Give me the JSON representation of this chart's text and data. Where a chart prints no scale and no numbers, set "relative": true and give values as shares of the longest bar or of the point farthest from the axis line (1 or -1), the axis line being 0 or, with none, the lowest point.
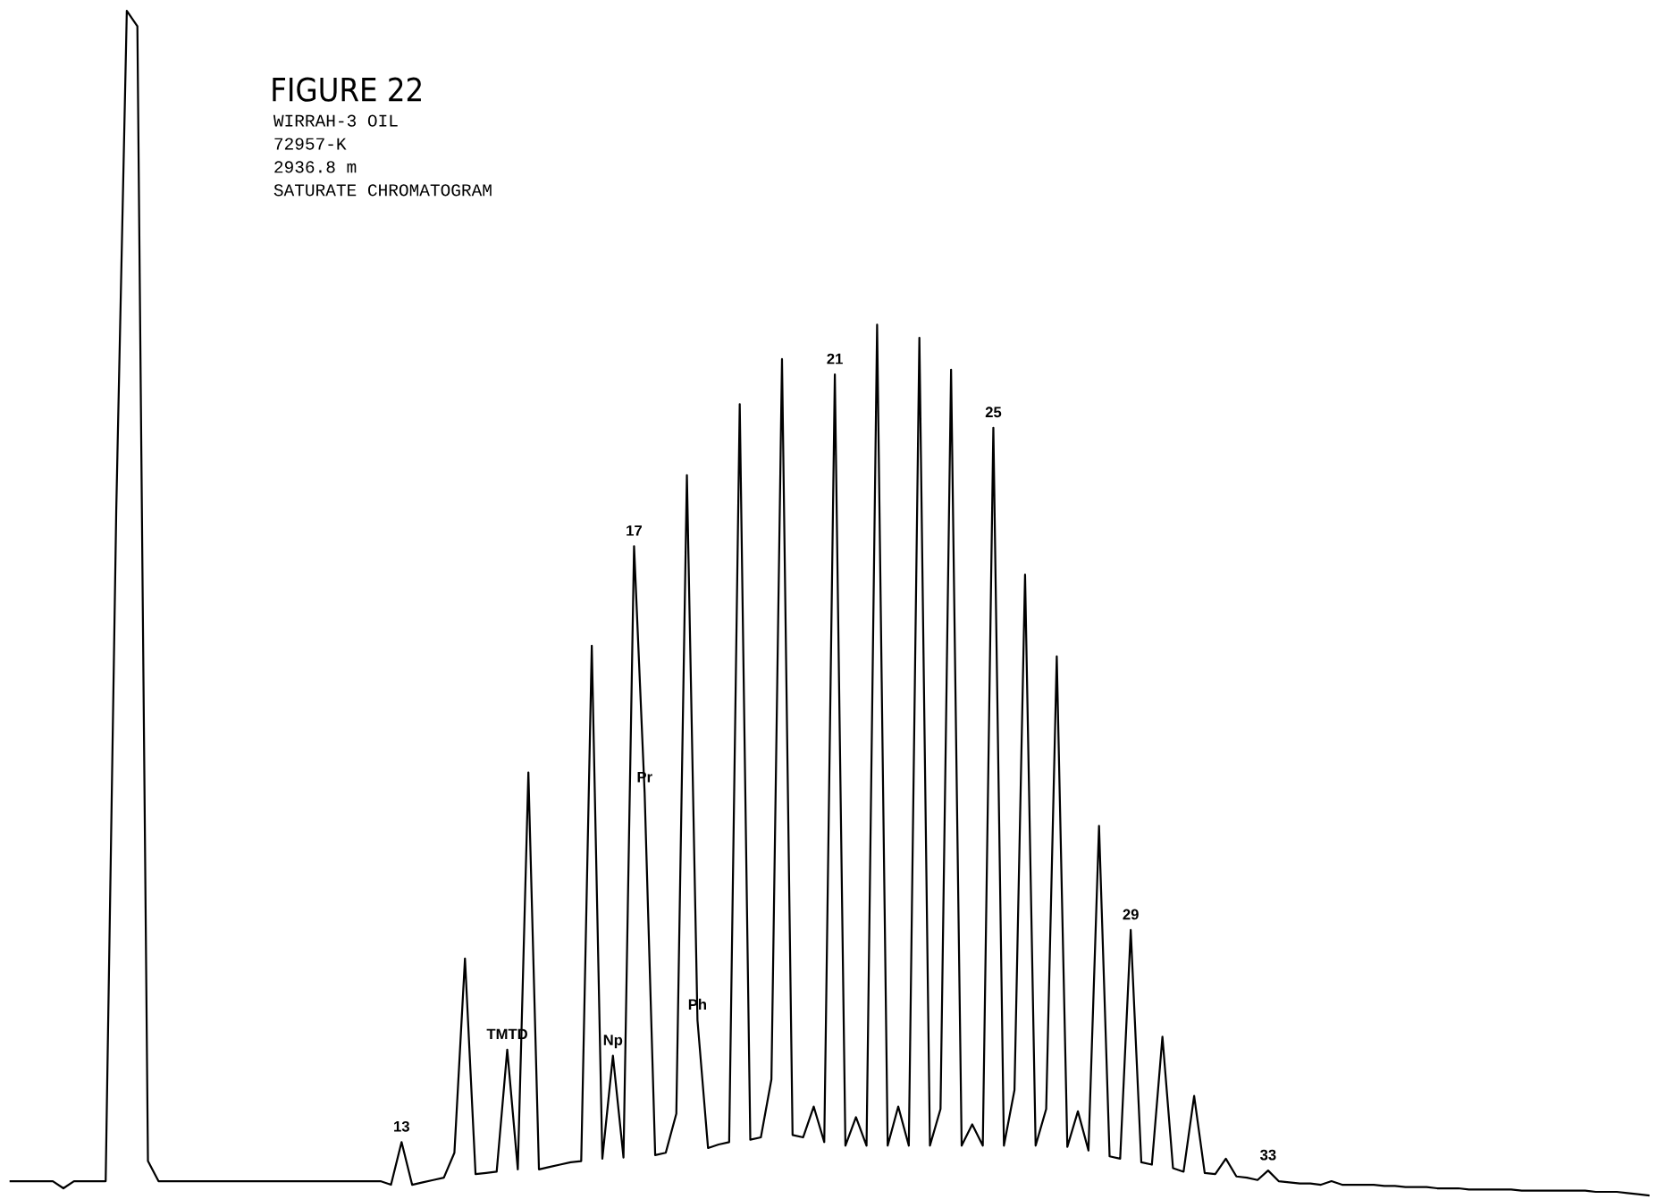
{
  "chart_data": {
    "type": "line",
    "relative": true,
    "title": "FIGURE 22",
    "subtitle": "WIRRAH-3 OIL\n72957-K\n2936.8 m\nSATURATE CHROMATOGRAM",
    "color": "#000000",
    "categories": [
      null,
      null,
      null,
      null,
      null,
      null,
      null,
      null,
      null,
      null,
      null,
      null,
      null,
      null,
      null,
      null,
      null,
      null,
      null,
      null,
      null,
      null,
      null,
      null,
      null,
      null,
      null,
      null,
      null,
      null,
      null,
      null,
      null,
      null,
      null,
      null,
      null,
      null,
      null,
      null,
      null,
      null,
      null,
      null,
      null,
      null,
      null,
      null,
      null,
      null,
      null,
      null,
      null,
      null,
      null,
      null,
      null,
      null,
      null,
      null,
      null,
      null,
      null,
      null,
      null,
      null,
      null,
      null,
      null,
      null,
      null,
      null,
      null,
      null,
      null,
      null,
      null,
      null,
      null,
      null,
      null,
      null,
      null,
      null,
      null,
      null,
      null,
      null,
      null,
      null,
      null,
      null,
      null,
      null,
      null,
      null,
      null,
      null,
      null,
      null,
      null,
      null,
      null,
      null,
      null,
      null,
      null,
      null,
      null,
      null,
      null,
      null,
      null,
      null,
      null,
      null,
      null,
      null,
      null,
      null,
      null,
      null,
      null,
      null,
      null,
      null,
      null,
      null,
      null,
      null,
      null,
      null,
      null,
      null,
      null,
      null,
      null,
      null,
      null,
      null,
      null,
      null,
      null,
      null,
      null,
      null,
      null,
      null,
      null,
      null,
      null,
      null,
      null,
      null,
      null,
      null
    ],
    "values": [
      0.012,
      0.012,
      0.012,
      0.012,
      0.012,
      0.006,
      0.012,
      0.012,
      0.012,
      0.012,
      0.578,
      1.0,
      0.987,
      0.029,
      0.012,
      0.012,
      0.012,
      0.012,
      0.012,
      0.012,
      0.012,
      0.012,
      0.012,
      0.012,
      0.012,
      0.012,
      0.012,
      0.012,
      0.012,
      0.012,
      0.012,
      0.012,
      0.012,
      0.012,
      0.012,
      0.012,
      0.009,
      0.045,
      0.009,
      0.011,
      0.013,
      0.015,
      0.036,
      0.2,
      0.018,
      0.019,
      0.02,
      0.123,
      0.022,
      0.357,
      0.022,
      0.024,
      0.026,
      0.028,
      0.029,
      0.464,
      0.031,
      0.118,
      0.032,
      0.548,
      0.34,
      0.034,
      0.036,
      0.069,
      0.608,
      0.148,
      0.04,
      0.043,
      0.045,
      0.668,
      0.047,
      0.049,
      0.098,
      0.706,
      0.051,
      0.049,
      0.075,
      0.045,
      0.693,
      0.042,
      0.066,
      0.042,
      0.735,
      0.042,
      0.075,
      0.042,
      0.724,
      0.042,
      0.073,
      0.697,
      0.042,
      0.06,
      0.042,
      0.648,
      0.042,
      0.089,
      0.524,
      0.042,
      0.073,
      0.455,
      0.041,
      0.071,
      0.038,
      0.312,
      0.033,
      0.031,
      0.224,
      0.028,
      0.026,
      0.134,
      0.023,
      0.02,
      0.084,
      0.019,
      0.018,
      0.031,
      0.016,
      0.015,
      0.013,
      0.021,
      0.012,
      0.011,
      0.01,
      0.01,
      0.009,
      0.012,
      0.009,
      0.009,
      0.009,
      0.009,
      0.008,
      0.008,
      0.007,
      0.007,
      0.007,
      0.006,
      0.006,
      0.006,
      0.005,
      0.005,
      0.005,
      0.005,
      0.005,
      0.004,
      0.004,
      0.004,
      0.004,
      0.004,
      0.004,
      0.004,
      0.003,
      0.003,
      0.003,
      0.002,
      0.001,
      0
    ],
    "annotations": [
      {
        "text": "13",
        "y": 0.045
      },
      {
        "text": "TMTD",
        "y": 0.123
      },
      {
        "text": "Np",
        "y": 0.118
      },
      {
        "text": "17",
        "y": 0.548
      },
      {
        "text": "Pr",
        "y": 0.34
      },
      {
        "text": "Ph",
        "y": 0.148
      },
      {
        "text": "21",
        "y": 0.693
      },
      {
        "text": "25",
        "y": 0.648
      },
      {
        "text": "29",
        "y": 0.224
      },
      {
        "text": "33",
        "y": 0.021
      }
    ]
  }
}
